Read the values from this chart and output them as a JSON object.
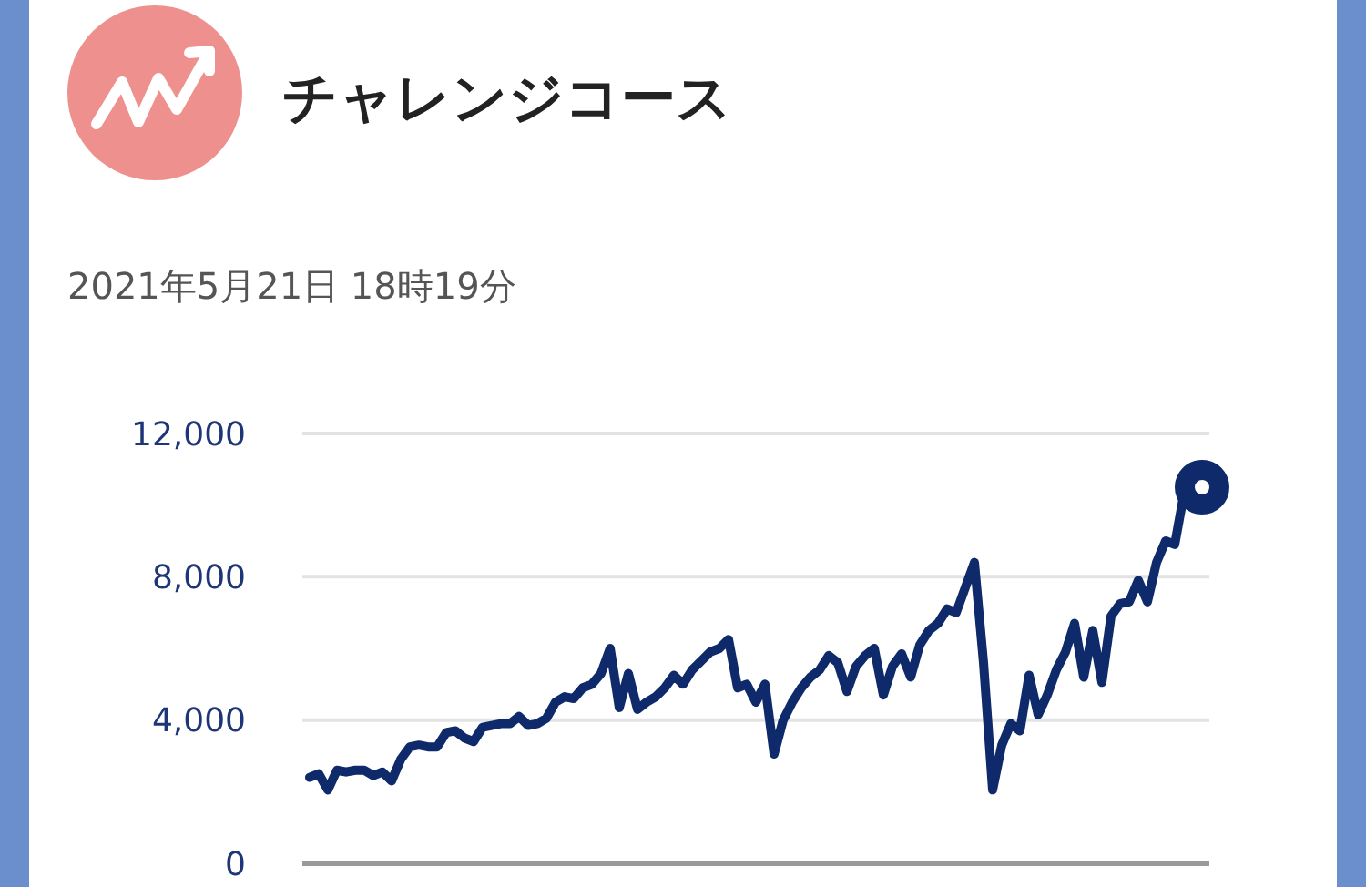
{
  "chart_data": {
    "type": "line",
    "title": "チャレンジコース",
    "subtitle": "2021年5月21日 18時19分",
    "categories": [
      null,
      null,
      null,
      null,
      null,
      null,
      null,
      null,
      null,
      null,
      null,
      null,
      null,
      null,
      null,
      null,
      null,
      null,
      null,
      null,
      null,
      null,
      null,
      null,
      null,
      null,
      null,
      null,
      null,
      null,
      null,
      null,
      null,
      null,
      null,
      null,
      null,
      null,
      null,
      null,
      null,
      null,
      null,
      null,
      null,
      null,
      null,
      null,
      null,
      null,
      null,
      null,
      null,
      null,
      null,
      null,
      null,
      null,
      null,
      null,
      null,
      null,
      null,
      null,
      null,
      null,
      null,
      null,
      null,
      null,
      null,
      null,
      null,
      null,
      null,
      null,
      null,
      null,
      null,
      null,
      null,
      null,
      null,
      null,
      null,
      null,
      null,
      null,
      null,
      null,
      null,
      null,
      null,
      null,
      null,
      null,
      null,
      null,
      null
    ],
    "series": [
      {
        "color": "#0f2a6b",
        "values": [
          2400,
          2500,
          2050,
          2600,
          2550,
          2600,
          2600,
          2450,
          2550,
          2300,
          2900,
          3250,
          3300,
          3250,
          3250,
          3650,
          3700,
          3500,
          3400,
          3800,
          3850,
          3900,
          3900,
          4100,
          3850,
          3900,
          4050,
          4500,
          4650,
          4600,
          4900,
          5000,
          5300,
          6000,
          4350,
          5300,
          4300,
          4500,
          4650,
          4900,
          5250,
          5000,
          5400,
          5650,
          5900,
          6000,
          6250,
          4900,
          5000,
          4500,
          5000,
          3050,
          4000,
          4500,
          4900,
          5200,
          5400,
          5800,
          5600,
          4800,
          5500,
          5800,
          6000,
          4700,
          5500,
          5850,
          5200,
          6100,
          6500,
          6700,
          7100,
          7000,
          7700,
          8400,
          5600,
          2050,
          3300,
          3900,
          3700,
          5250,
          4150,
          4700,
          5400,
          5900,
          6700,
          5200,
          6500,
          5050,
          6900,
          7250,
          7300,
          7900,
          7300,
          8400,
          9000,
          8900,
          10300,
          10450,
          10500
        ]
      },
      {
        "type": "scatter",
        "marker": "circle",
        "color": "#0f2a6b",
        "values": [
          null,
          null,
          null,
          null,
          null,
          null,
          null,
          null,
          null,
          null,
          null,
          null,
          null,
          null,
          null,
          null,
          null,
          null,
          null,
          null,
          null,
          null,
          null,
          null,
          null,
          null,
          null,
          null,
          null,
          null,
          null,
          null,
          null,
          null,
          null,
          null,
          null,
          null,
          null,
          null,
          null,
          null,
          null,
          null,
          null,
          null,
          null,
          null,
          null,
          null,
          null,
          null,
          null,
          null,
          null,
          null,
          null,
          null,
          null,
          null,
          null,
          null,
          null,
          null,
          null,
          null,
          null,
          null,
          null,
          null,
          null,
          null,
          null,
          null,
          null,
          null,
          null,
          null,
          null,
          null,
          null,
          null,
          null,
          null,
          null,
          null,
          null,
          null,
          null,
          null,
          null,
          null,
          null,
          null,
          null,
          null,
          null,
          null,
          10500
        ]
      }
    ],
    "ylim": [
      0,
      12000
    ],
    "yticks": [
      {
        "value": 0,
        "label": "0"
      },
      {
        "value": 4000,
        "label": "4,000"
      },
      {
        "value": 8000,
        "label": "8,000"
      },
      {
        "value": 12000,
        "label": "12,000"
      }
    ],
    "grid": "y",
    "tick_labels": "y"
  }
}
